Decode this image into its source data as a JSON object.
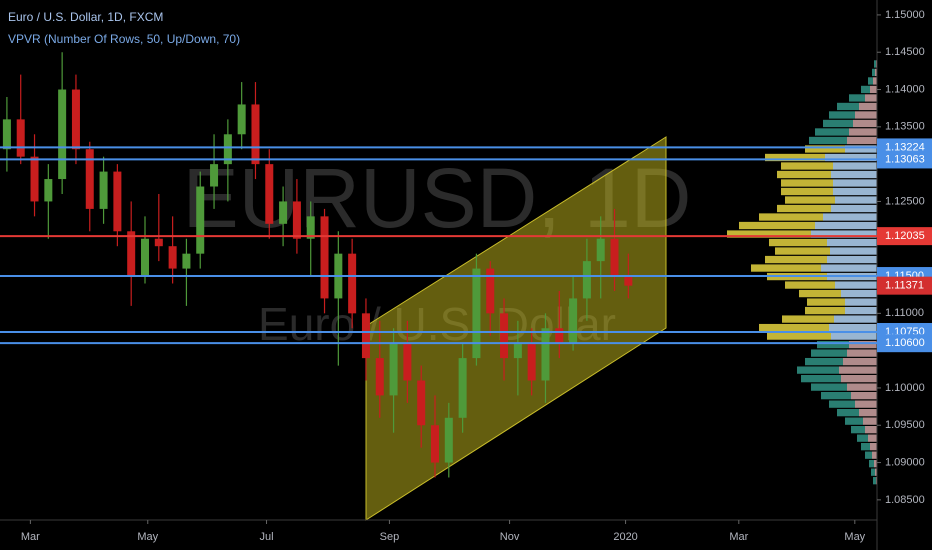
{
  "chart_data": {
    "type": "candlestick",
    "title": "Euro / U.S. Dollar, 1D, FXCM",
    "subtitle": "VPVR (Number Of Rows, 50, Up/Down, 70)",
    "watermark": "EURUSD, 1D",
    "watermark_subtitle": "Euro / U.S. Dollar",
    "up_color": "#4f9a3a",
    "down_color": "#c81e1e",
    "x": [
      0,
      1,
      2,
      3,
      4,
      5,
      6,
      7,
      8,
      9,
      10,
      11,
      12,
      13,
      14,
      15,
      16,
      17,
      18,
      19,
      20,
      21,
      22,
      23,
      24,
      25,
      26,
      27,
      28,
      29,
      30,
      31,
      32,
      33,
      34,
      35,
      36,
      37,
      38,
      39,
      40,
      41,
      42,
      43,
      44,
      45
    ],
    "open": [
      1.132,
      1.136,
      1.131,
      1.125,
      1.128,
      1.14,
      1.132,
      1.124,
      1.129,
      1.121,
      1.115,
      1.12,
      1.119,
      1.116,
      1.118,
      1.127,
      1.13,
      1.134,
      1.138,
      1.13,
      1.122,
      1.125,
      1.12,
      1.123,
      1.112,
      1.118,
      1.11,
      1.104,
      1.099,
      1.106,
      1.101,
      1.095,
      1.09,
      1.096,
      1.104,
      1.116,
      1.11,
      1.104,
      1.106,
      1.101,
      1.108,
      1.106,
      1.112,
      1.117,
      1.12,
      1.115
    ],
    "high": [
      1.139,
      1.142,
      1.134,
      1.13,
      1.145,
      1.142,
      1.133,
      1.131,
      1.13,
      1.125,
      1.123,
      1.126,
      1.123,
      1.12,
      1.129,
      1.134,
      1.136,
      1.141,
      1.141,
      1.132,
      1.127,
      1.128,
      1.125,
      1.124,
      1.121,
      1.12,
      1.112,
      1.109,
      1.108,
      1.109,
      1.103,
      1.099,
      1.098,
      1.106,
      1.118,
      1.117,
      1.112,
      1.109,
      1.108,
      1.11,
      1.113,
      1.115,
      1.12,
      1.123,
      1.124,
      1.118
    ],
    "low": [
      1.129,
      1.13,
      1.123,
      1.12,
      1.126,
      1.13,
      1.121,
      1.122,
      1.119,
      1.111,
      1.114,
      1.117,
      1.114,
      1.111,
      1.116,
      1.124,
      1.125,
      1.132,
      1.128,
      1.12,
      1.119,
      1.118,
      1.115,
      1.11,
      1.103,
      1.108,
      1.101,
      1.096,
      1.094,
      1.098,
      1.092,
      1.088,
      1.088,
      1.094,
      1.103,
      1.107,
      1.101,
      1.099,
      1.099,
      1.098,
      1.104,
      1.105,
      1.109,
      1.112,
      1.113,
      1.112
    ],
    "close": [
      1.136,
      1.131,
      1.125,
      1.128,
      1.14,
      1.132,
      1.124,
      1.129,
      1.121,
      1.115,
      1.12,
      1.119,
      1.116,
      1.118,
      1.127,
      1.13,
      1.134,
      1.138,
      1.13,
      1.122,
      1.125,
      1.12,
      1.123,
      1.112,
      1.118,
      1.11,
      1.104,
      1.099,
      1.106,
      1.101,
      1.095,
      1.09,
      1.096,
      1.104,
      1.116,
      1.11,
      1.104,
      1.106,
      1.101,
      1.108,
      1.106,
      1.112,
      1.117,
      1.12,
      1.115,
      1.11371
    ],
    "last_price_color": "#d32f2f",
    "xlim": [
      -0.5,
      62.5
    ],
    "xticks": [
      {
        "value": 1.7,
        "label": "Mar"
      },
      {
        "value": 10.2,
        "label": "May"
      },
      {
        "value": 18.8,
        "label": "Jul"
      },
      {
        "value": 27.7,
        "label": "Sep"
      },
      {
        "value": 36.4,
        "label": "Nov"
      },
      {
        "value": 44.8,
        "label": "2020"
      },
      {
        "value": 53.0,
        "label": "Mar"
      },
      {
        "value": 61.4,
        "label": "May"
      }
    ],
    "ylim": [
      1.0823,
      1.152
    ],
    "yticks": [
      {
        "value": 1.15,
        "label": "1.15000"
      },
      {
        "value": 1.145,
        "label": "1.14500"
      },
      {
        "value": 1.14,
        "label": "1.14000"
      },
      {
        "value": 1.135,
        "label": "1.13500"
      },
      {
        "value": 1.125,
        "label": "1.12500"
      },
      {
        "value": 1.11,
        "label": "1.11000"
      },
      {
        "value": 1.1,
        "label": "1.10000"
      },
      {
        "value": 1.095,
        "label": "1.09500"
      },
      {
        "value": 1.09,
        "label": "1.09000"
      },
      {
        "value": 1.085,
        "label": "1.08500"
      }
    ],
    "levels": [
      {
        "value": 1.13224,
        "label": "1.13224",
        "color": "#4a8fe7"
      },
      {
        "value": 1.13063,
        "label": "1.13063",
        "color": "#4a8fe7"
      },
      {
        "value": 1.12035,
        "label": "1.12035",
        "color": "#e53935"
      },
      {
        "value": 1.115,
        "label": "1.11500",
        "color": "#4a8fe7"
      },
      {
        "value": 1.1075,
        "label": "1.10750",
        "color": "#4a8fe7"
      },
      {
        "value": 1.106,
        "label": "1.10600",
        "color": "#4a8fe7"
      }
    ],
    "volume_profile": {
      "bins": [
        1.087,
        1.08814,
        1.08928,
        1.09042,
        1.09156,
        1.0927,
        1.09384,
        1.09498,
        1.09612,
        1.09726,
        1.0984,
        1.09954,
        1.10068,
        1.10182,
        1.10296,
        1.1041,
        1.10524,
        1.10638,
        1.10752,
        1.10866,
        1.1098,
        1.11094,
        1.11208,
        1.11322,
        1.11436,
        1.1155,
        1.11664,
        1.11778,
        1.11892,
        1.12006,
        1.1212,
        1.12234,
        1.12348,
        1.12462,
        1.12576,
        1.1269,
        1.12804,
        1.12918,
        1.13032,
        1.13146,
        1.1326,
        1.13374,
        1.13488,
        1.13602,
        1.13716,
        1.1383,
        1.13944,
        1.14058,
        1.14172,
        1.14286,
        1.144
      ],
      "up": [
        3,
        4,
        5,
        7,
        9,
        11,
        14,
        18,
        22,
        26,
        30,
        36,
        40,
        42,
        38,
        36,
        32,
        64,
        70,
        52,
        40,
        38,
        42,
        50,
        60,
        70,
        62,
        55,
        58,
        84,
        76,
        64,
        54,
        50,
        52,
        52,
        54,
        52,
        60,
        40,
        38,
        34,
        30,
        26,
        22,
        16,
        9,
        5,
        3,
        2
      ],
      "down": [
        1,
        2,
        3,
        5,
        7,
        9,
        12,
        14,
        18,
        22,
        26,
        30,
        36,
        38,
        34,
        30,
        28,
        46,
        48,
        43,
        32,
        32,
        36,
        42,
        50,
        56,
        50,
        47,
        50,
        66,
        62,
        54,
        46,
        42,
        44,
        44,
        46,
        44,
        52,
        32,
        30,
        28,
        24,
        22,
        18,
        12,
        7,
        4,
        2,
        1
      ],
      "value_area_rows": [
        17,
        39
      ],
      "up_color": "#2f8c7e",
      "down_color": "#c39a9a",
      "va_up_color": "#d8c83c",
      "va_down_color": "#a9c9e8"
    }
  }
}
